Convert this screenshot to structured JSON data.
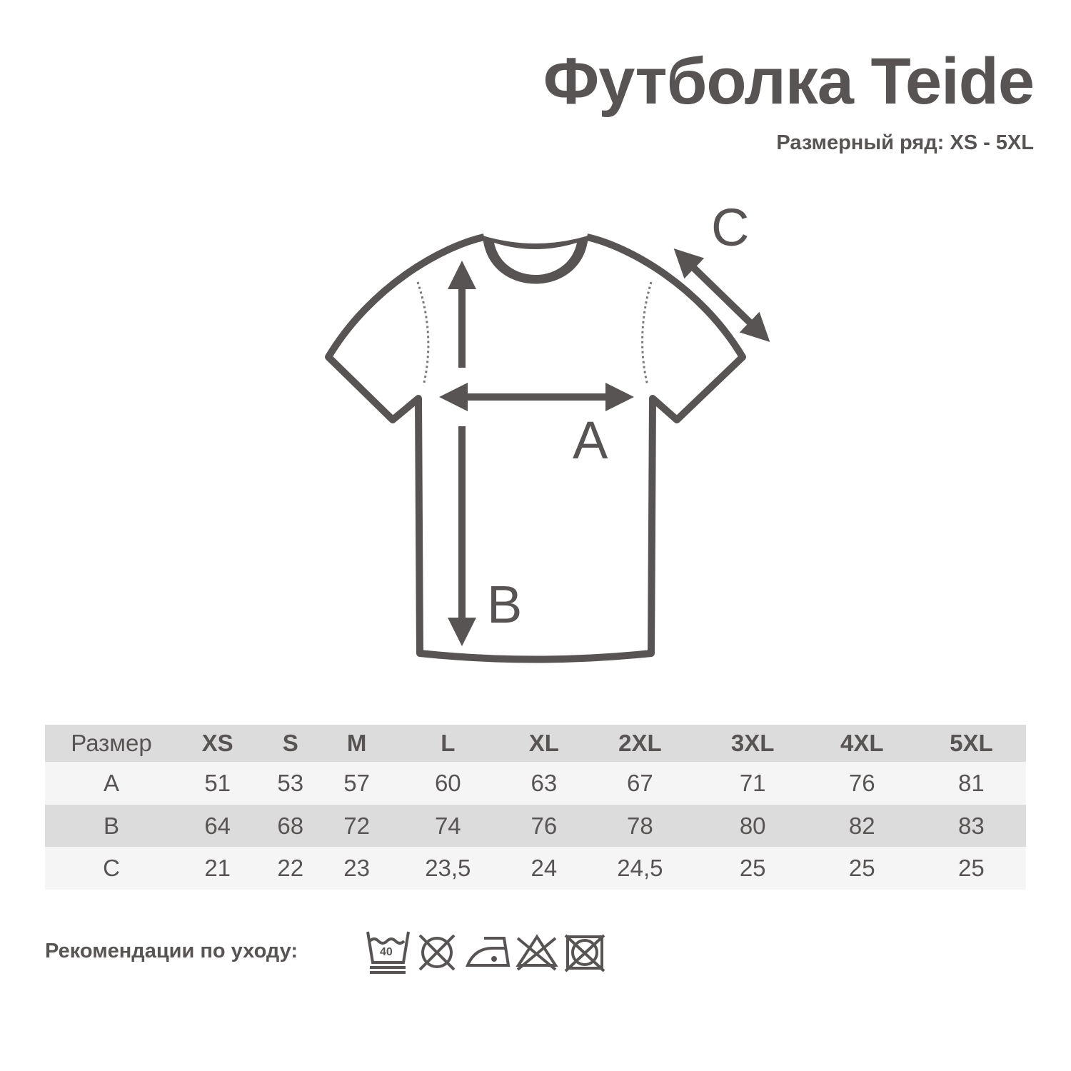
{
  "title": "Футболка Teide",
  "subtitle": "Размерный ряд: XS - 5XL",
  "diagram": {
    "labels": {
      "a": "A",
      "b": "B",
      "c": "C"
    }
  },
  "table": {
    "header": [
      "Размер",
      "XS",
      "S",
      "M",
      "L",
      "XL",
      "2XL",
      "3XL",
      "4XL",
      "5XL"
    ],
    "rows": [
      [
        "A",
        "51",
        "53",
        "57",
        "60",
        "63",
        "67",
        "71",
        "76",
        "81"
      ],
      [
        "B",
        "64",
        "68",
        "72",
        "74",
        "76",
        "78",
        "80",
        "82",
        "83"
      ],
      [
        "C",
        "21",
        "22",
        "23",
        "23,5",
        "24",
        "24,5",
        "25",
        "25",
        "25"
      ]
    ]
  },
  "care": {
    "label": "Рекомендации по уходу:",
    "wash_temp": "40",
    "icons": [
      "wash-40-gentle-icon",
      "no-tumble-dry-icon",
      "iron-low-icon",
      "no-bleach-icon",
      "no-dry-clean-icon"
    ]
  },
  "colors": {
    "text": "#585453",
    "header_bg": "#dcdcdc",
    "row_light": "#f5f5f5"
  }
}
